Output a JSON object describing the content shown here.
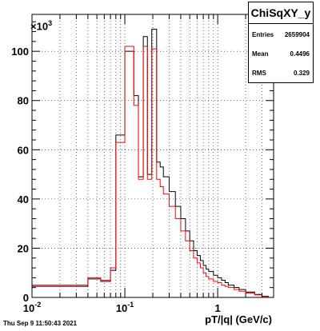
{
  "stats": {
    "title": "ChiSqXY_y",
    "rows": [
      {
        "key": "Entries",
        "value": "2659904"
      },
      {
        "key": "Mean",
        "value": "0.4496"
      },
      {
        "key": "RMS",
        "value": "0.329"
      }
    ]
  },
  "timestamp": "Thu Sep  9 11:50:43 2021",
  "chart_data": {
    "type": "line",
    "xlabel": "pT/|q| (GeV/c)",
    "ylabel": "",
    "x_scale": "log",
    "xlim": [
      0.01,
      4
    ],
    "ylim": [
      0,
      115000
    ],
    "y_multiplier": {
      "base": "×10",
      "exponent": "3"
    },
    "grid": true,
    "x_tick_labels": [
      {
        "value": 0.01,
        "label": "10",
        "exp": "-2"
      },
      {
        "value": 0.1,
        "label": "10",
        "exp": "-1"
      },
      {
        "value": 1,
        "label": "1",
        "exp": ""
      }
    ],
    "y_tick_labels": [
      {
        "value": 0,
        "label": "0"
      },
      {
        "value": 20000,
        "label": "20"
      },
      {
        "value": 40000,
        "label": "40"
      },
      {
        "value": 60000,
        "label": "60"
      },
      {
        "value": 80000,
        "label": "80"
      },
      {
        "value": 100000,
        "label": "100"
      }
    ],
    "series": [
      {
        "color": "#000000",
        "edges": [
          0.01,
          0.04,
          0.055,
          0.07,
          0.08,
          0.1,
          0.125,
          0.14,
          0.158,
          0.175,
          0.195,
          0.22,
          0.24,
          0.26,
          0.3,
          0.35,
          0.4,
          0.45,
          0.5,
          0.55,
          0.6,
          0.65,
          0.7,
          0.75,
          0.8,
          0.9,
          1.0,
          1.1,
          1.2,
          1.3,
          1.5,
          1.7,
          2.0,
          2.5,
          3.0,
          3.5
        ],
        "values": [
          4500,
          7500,
          6500,
          11000,
          66000,
          100000,
          82000,
          49000,
          106000,
          50000,
          109000,
          55000,
          53000,
          49000,
          43000,
          37000,
          32000,
          27000,
          23000,
          19000,
          17000,
          15000,
          13000,
          11500,
          10500,
          9000,
          8000,
          7000,
          6000,
          5000,
          4000,
          3200,
          2200,
          1200,
          500
        ]
      },
      {
        "color": "#ff0000",
        "edges": [
          0.01,
          0.04,
          0.055,
          0.07,
          0.08,
          0.1,
          0.125,
          0.14,
          0.158,
          0.175,
          0.195,
          0.22,
          0.24,
          0.26,
          0.3,
          0.35,
          0.4,
          0.45,
          0.5,
          0.55,
          0.6,
          0.65,
          0.7,
          0.75,
          0.8,
          0.9,
          1.0,
          1.1,
          1.2,
          1.3,
          1.5,
          1.7,
          2.0,
          2.5,
          3.0,
          3.5
        ],
        "values": [
          5000,
          8000,
          7000,
          12000,
          63000,
          102000,
          78000,
          48000,
          102000,
          48000,
          101000,
          48000,
          45000,
          42000,
          37000,
          32000,
          27000,
          23000,
          19000,
          16000,
          14000,
          12000,
          10000,
          8500,
          7500,
          6500,
          6000,
          5000,
          4500,
          4000,
          3200,
          2500,
          1800,
          1000,
          400
        ]
      }
    ]
  }
}
